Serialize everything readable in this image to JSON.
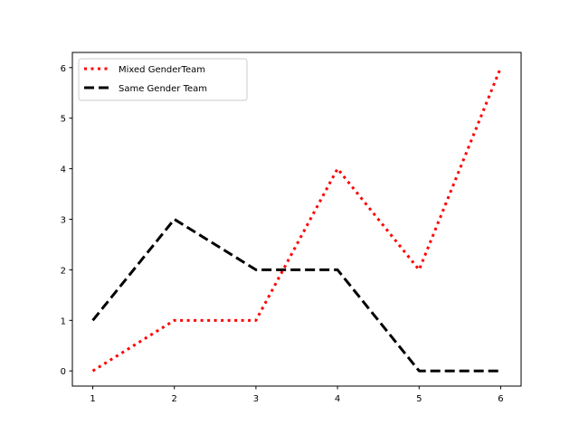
{
  "chart_data": {
    "type": "line",
    "title": "",
    "xlabel": "",
    "ylabel": "",
    "x": [
      1,
      2,
      3,
      4,
      5,
      6
    ],
    "xlim": [
      0.75,
      6.25
    ],
    "ylim": [
      -0.3,
      6.3
    ],
    "xticks": [
      "1",
      "2",
      "3",
      "4",
      "5",
      "6"
    ],
    "yticks": [
      "0",
      "1",
      "2",
      "3",
      "4",
      "5",
      "6"
    ],
    "grid": false,
    "legend_position": "top-left",
    "series": [
      {
        "name": "Mixed GenderTeam",
        "values": [
          0,
          1,
          1,
          4,
          2,
          6
        ],
        "color": "#ff0000",
        "style": "dotted"
      },
      {
        "name": "Same Gender Team",
        "values": [
          1,
          3,
          2,
          2,
          0,
          0
        ],
        "color": "#000000",
        "style": "dashed"
      }
    ]
  }
}
